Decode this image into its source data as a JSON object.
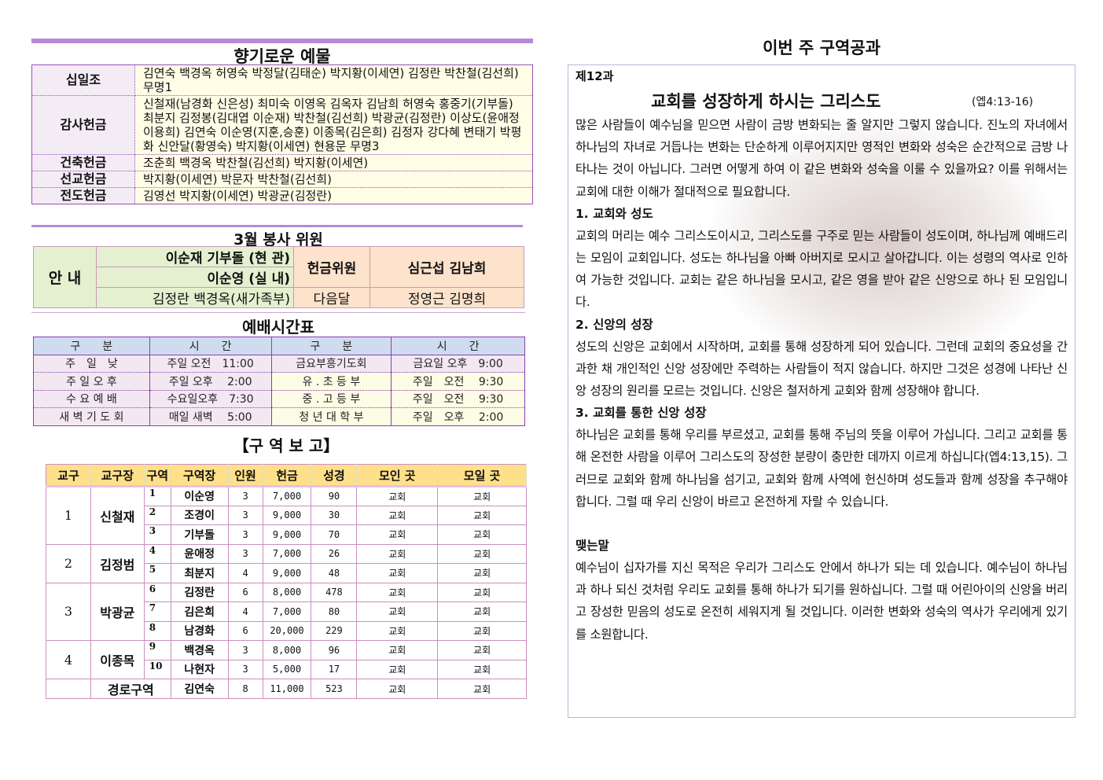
{
  "offerings": {
    "title": "향기로운 예물",
    "rows": [
      {
        "label": "십일조",
        "names": "김연숙 백경옥 허영숙 박정달(김태순) 박지황(이세연) 김정란 박찬철(김선희) 무명1"
      },
      {
        "label": "감사헌금",
        "names": "신철재(남경화 신은성) 최미숙 이영옥 김옥자 김남희 허영숙 홍중기(기부돌) 최분지 김정봉(김대엽 이순재) 박찬철(김선희) 박광균(김정란) 이상도(윤애정 이용희) 김연숙 이순영(지훈,승훈) 이종목(김은희) 김정자 강다혜 변태기 박평화 신안달(황영숙) 박지황(이세연) 현용문 무명3"
      },
      {
        "label": "건축헌금",
        "names": "조춘희 백경옥 박찬철(김선희) 박지황(이세연)"
      },
      {
        "label": "선교헌금",
        "names": "박지황(이세연) 박문자 박찬철(김선희)"
      },
      {
        "label": "전도헌금",
        "names": "김영선 박지황(이세연) 박광균(김정란)"
      }
    ]
  },
  "service": {
    "title": "3월 봉사 위원",
    "guide_label": "안 내",
    "guide1": "이순재 기부돌 (현 관)",
    "guide2": "이순영 (실 내)",
    "guide3": "김정란 백경옥(새가족부)",
    "offering_label": "헌금위원",
    "offering_names": "심근섭 김남희",
    "next_label": "다음달",
    "next_names": "정영근 김명희"
  },
  "worship": {
    "title": "예배시간표",
    "headers": [
      "구　　분",
      "시　　간",
      "구　　분",
      "시　　간"
    ],
    "rows": [
      [
        "주　일　낮",
        "주일 오전　11:00",
        "금요부흥기도회",
        "금요일 오후　9:00"
      ],
      [
        "주 일 오 후",
        "주일 오후　 2:00",
        "유 . 초 등 부",
        "주일　오전　 9:30"
      ],
      [
        "수 요 예 배",
        "수요일오후　7:30",
        "중 . 고 등 부",
        "주일　오전　 9:30"
      ],
      [
        "새 벽 기 도 회",
        "매일 새벽　 5:00",
        "청 년 대 학 부",
        "주일　오후　 2:00"
      ]
    ]
  },
  "district": {
    "title": "【구 역 보 고】",
    "headers": [
      "교구",
      "교구장",
      "구역",
      "구역장",
      "인원",
      "헌금",
      "성경",
      "모인 곳",
      "모일 곳"
    ],
    "groups": [
      {
        "no": "1",
        "leader": "신철재",
        "rows": [
          [
            "1",
            "이순영",
            "3",
            "7,000",
            "90",
            "교회",
            "교회"
          ],
          [
            "2",
            "조경이",
            "3",
            "9,000",
            "30",
            "교회",
            "교회"
          ],
          [
            "3",
            "기부돌",
            "3",
            "9,000",
            "70",
            "교회",
            "교회"
          ]
        ]
      },
      {
        "no": "2",
        "leader": "김정범",
        "rows": [
          [
            "4",
            "윤애정",
            "3",
            "7,000",
            "26",
            "교회",
            "교회"
          ],
          [
            "5",
            "최분지",
            "4",
            "9,000",
            "48",
            "교회",
            "교회"
          ]
        ]
      },
      {
        "no": "3",
        "leader": "박광균",
        "rows": [
          [
            "6",
            "김정란",
            "6",
            "8,000",
            "478",
            "교회",
            "교회"
          ],
          [
            "7",
            "김은희",
            "4",
            "7,000",
            "80",
            "교회",
            "교회"
          ],
          [
            "8",
            "남경화",
            "6",
            "20,000",
            "229",
            "교회",
            "교회"
          ]
        ]
      },
      {
        "no": "4",
        "leader": "이종목",
        "rows": [
          [
            "9",
            "백경옥",
            "3",
            "8,000",
            "96",
            "교회",
            "교회"
          ],
          [
            "10",
            "나현자",
            "3",
            "5,000",
            "17",
            "교회",
            "교회"
          ]
        ]
      }
    ],
    "elder": {
      "label": "경로구역",
      "row": [
        "김연숙",
        "8",
        "11,000",
        "523",
        "교회",
        "교회"
      ]
    }
  },
  "lesson": {
    "heading": "이번 주 구역공과",
    "number": "제12과",
    "title": "교회를 성장하게 하시는 그리스도",
    "ref": "(엡4:13-16)",
    "intro": " 많은 사람들이 예수님을 믿으면 사람이 금방 변화되는 줄 알지만 그렇지 않습니다. 진노의 자녀에서 하나님의 자녀로 거듭나는 변화는 단순하게 이루어지지만 영적인 변화와 성숙은 순간적으로 금방 나타나는 것이 아닙니다. 그러면 어떻게 하여 이 같은 변화와 성숙을 이룰 수 있을까요? 이를 위해서는 교회에 대한 이해가 절대적으로 필요합니다.",
    "sections": [
      {
        "title": "1. 교회와 성도",
        "body": " 교회의 머리는 예수 그리스도이시고, 그리스도를 구주로 믿는 사람들이 성도이며, 하나님께 예배드리는 모임이 교회입니다. 성도는 하나님을 아빠 아버지로 모시고 살아갑니다. 이는 성령의 역사로 인하여 가능한 것입니다. 교회는 같은 하나님을 모시고, 같은 영을 받아 같은 신앙으로 하나 된 모임입니다."
      },
      {
        "title": "2. 신앙의 성장",
        "body": " 성도의 신앙은 교회에서 시작하며, 교회를 통해 성장하게 되어 있습니다. 그런데 교회의 중요성을 간과한 채 개인적인 신앙 성장에만 주력하는 사람들이 적지 않습니다. 하지만 그것은 성경에 나타난 신앙 성장의 원리를 모르는 것입니다. 신앙은 철저하게 교회와 함께 성장해야 합니다."
      },
      {
        "title": "3. 교회를 통한 신앙 성장",
        "body": " 하나님은 교회를 통해 우리를 부르셨고, 교회를 통해 주님의 뜻을 이루어 가십니다. 그리고 교회를 통해 온전한 사람을 이루어 그리스도의 장성한 분량이 충만한 데까지 이르게 하십니다(엡4:13,15). 그러므로 교회와 함께 하나님을 섬기고, 교회와 함께 사역에 헌신하며 성도들과 함께 성장을 추구해야 합니다. 그럴 때 우리 신앙이 바르고 온전하게 자랄 수 있습니다."
      }
    ],
    "closing_title": " 맺는말",
    "closing": " 예수님이 십자가를 지신 목적은 우리가 그리스도 안에서 하나가 되는 데 있습니다. 예수님이 하나님과 하나 되신 것처럼 우리도 교회를 통해 하나가 되기를 원하십니다. 그럴 때 어린아이의 신앙을 버리고 장성한 믿음의 성도로 온전히 세워지게 될 것입니다. 이러한 변화와 성숙의 역사가 우리에게 있기를 소원합니다."
  }
}
